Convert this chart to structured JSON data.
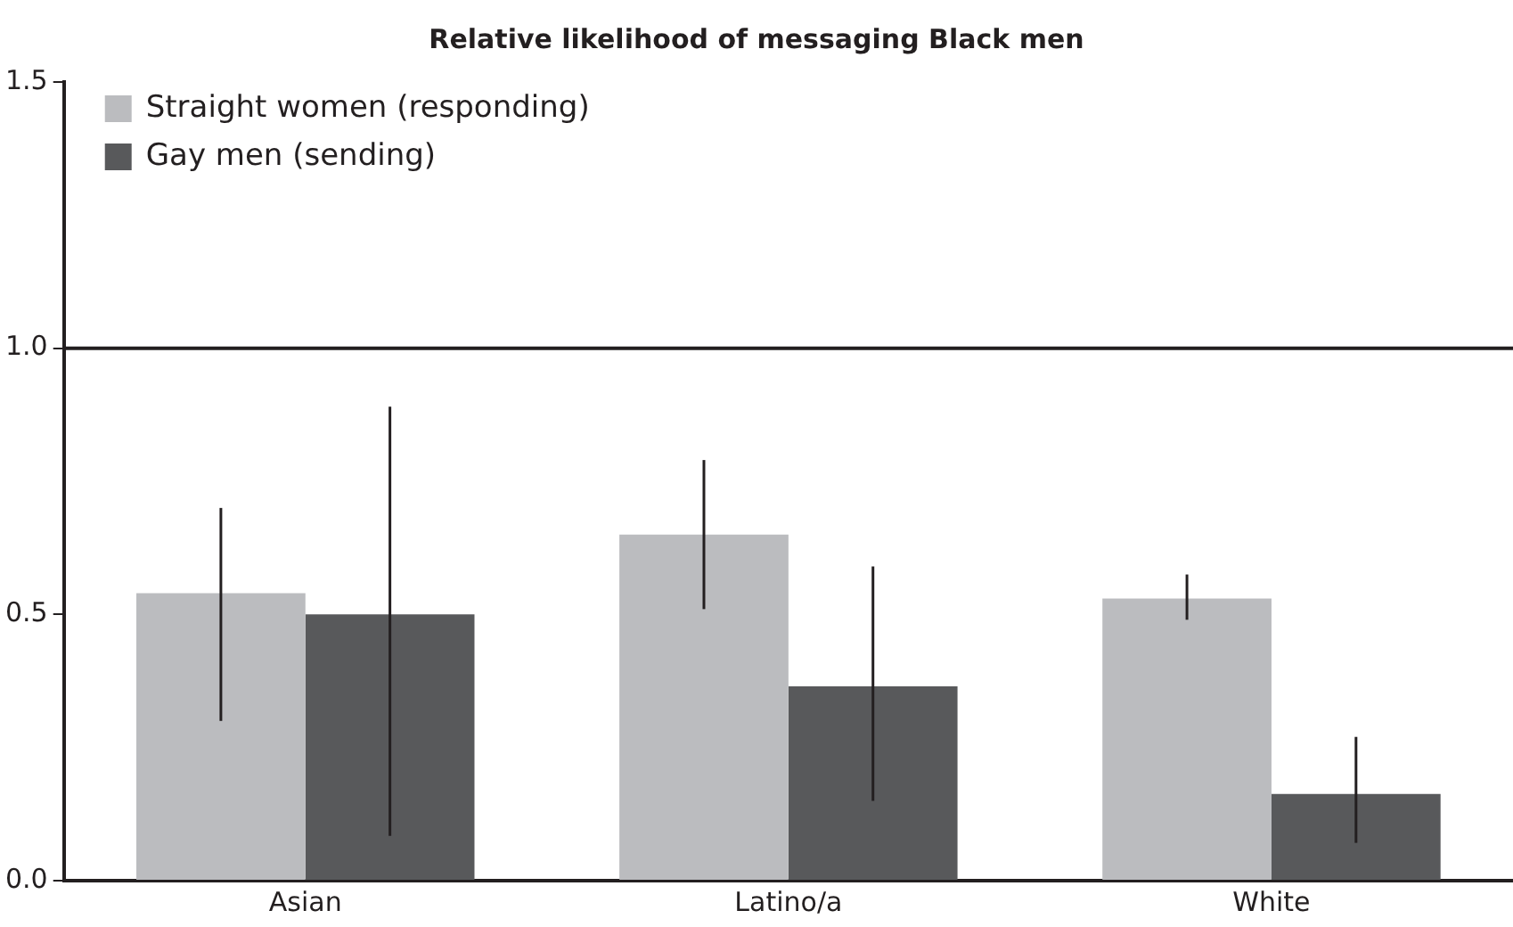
{
  "chart_data": {
    "type": "bar",
    "title": "Relative likelihood of messaging Black men",
    "categories": [
      "Asian",
      "Latino/a",
      "White"
    ],
    "series": [
      {
        "name": "Straight women (responding)",
        "color": "#bbbcbf",
        "values": [
          0.54,
          0.65,
          0.53
        ],
        "errors": [
          [
            0.3,
            0.7
          ],
          [
            0.51,
            0.79
          ],
          [
            0.49,
            0.575
          ]
        ]
      },
      {
        "name": "Gay men (sending)",
        "color": "#58595b",
        "values": [
          0.5,
          0.365,
          0.163
        ],
        "errors": [
          [
            0.084,
            0.89
          ],
          [
            0.15,
            0.59
          ],
          [
            0.071,
            0.27
          ]
        ]
      }
    ],
    "ylim": [
      0,
      1.5
    ],
    "yticks": [
      {
        "value": 0,
        "label": "0.0"
      },
      {
        "value": 0.5,
        "label": "0.5"
      },
      {
        "value": 1,
        "label": "1.0"
      },
      {
        "value": 1.5,
        "label": "1.5"
      }
    ],
    "ref_lines": [
      {
        "axis": "y",
        "value": 1,
        "color": "#231f20"
      }
    ],
    "legend": "top left",
    "grid": false
  }
}
